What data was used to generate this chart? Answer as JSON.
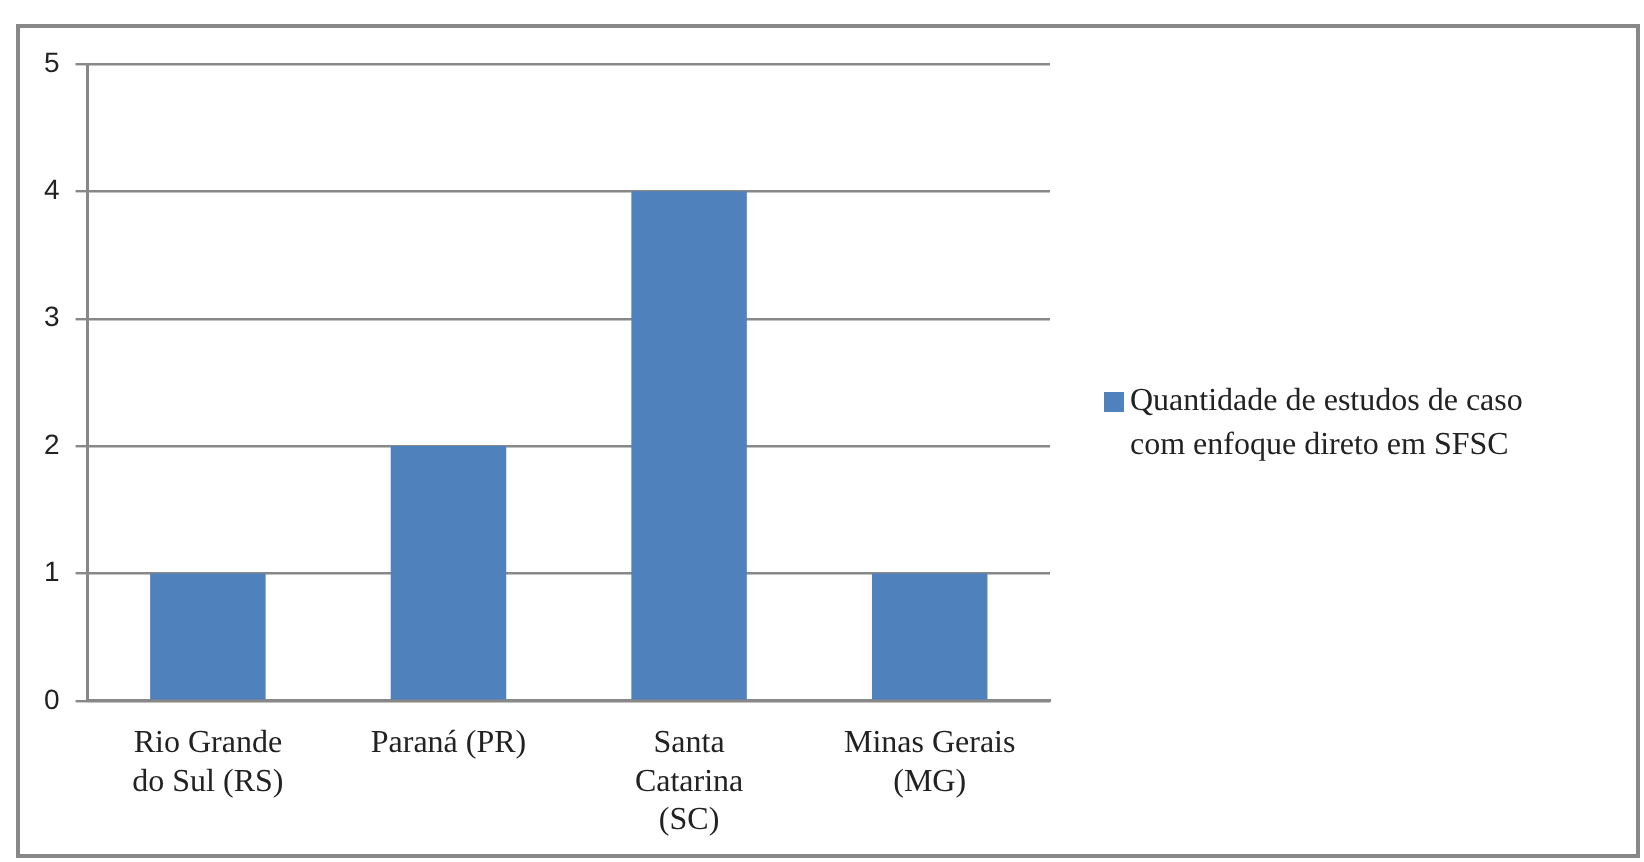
{
  "chart_data": {
    "type": "bar",
    "categories": [
      "Rio Grande do Sul (RS)",
      "Paraná (PR)",
      "Santa Catarina (SC)",
      "Minas Gerais (MG)"
    ],
    "series": [
      {
        "name": "Quantidade de estudos de caso com enfoque direto em SFSC",
        "color": "#4f81bd",
        "values": [
          1,
          2,
          4,
          1
        ]
      }
    ],
    "ylim": [
      0,
      5
    ],
    "yticks": [
      0,
      1,
      2,
      3,
      4,
      5
    ],
    "grid": "y",
    "legend": "right"
  }
}
